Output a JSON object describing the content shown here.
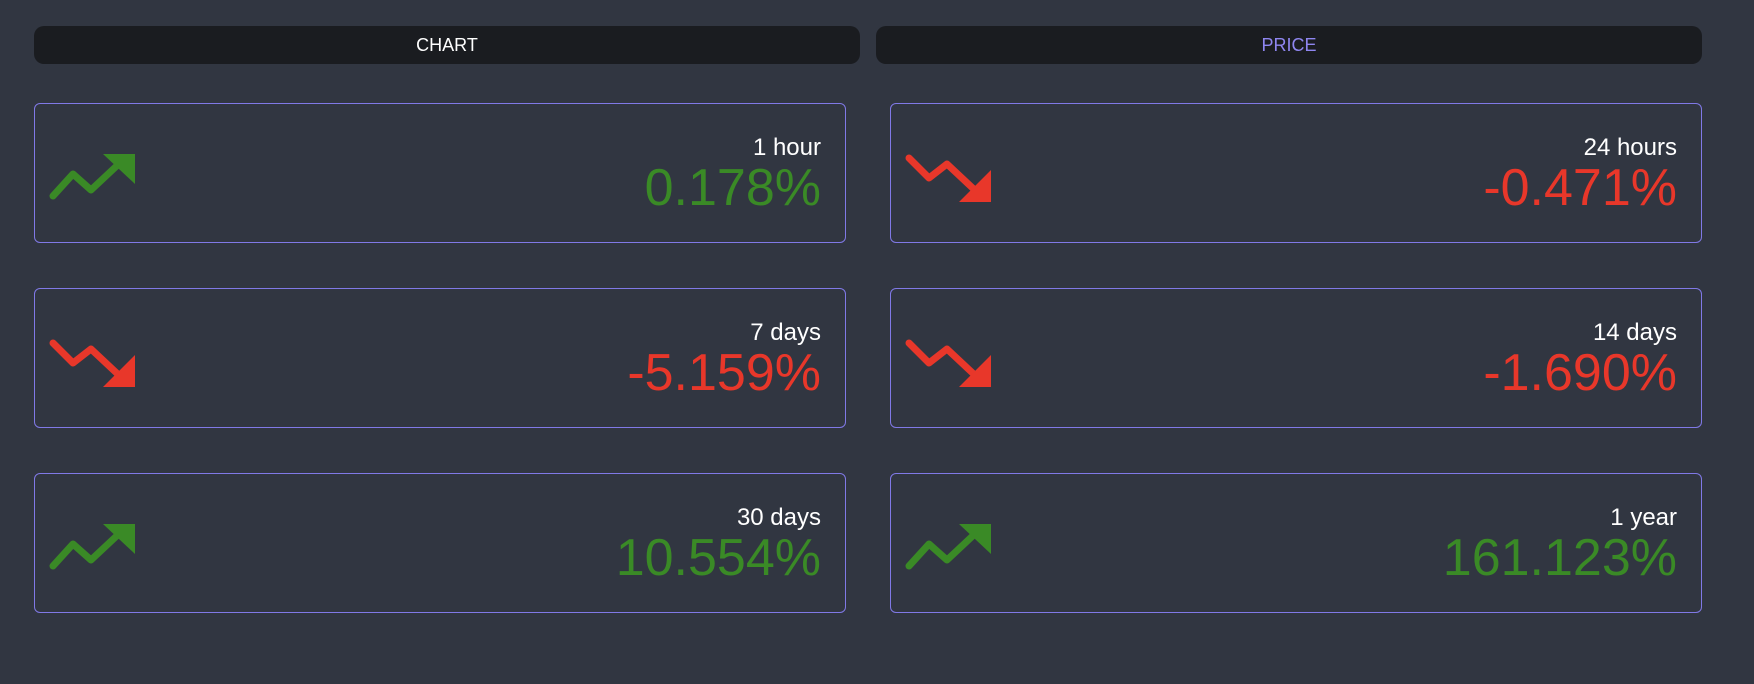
{
  "tabs": {
    "chart_label": "CHART",
    "price_label": "PRICE",
    "active": "price"
  },
  "colors": {
    "background": "#313641",
    "tab_background": "#1a1c20",
    "card_border": "#8079e6",
    "positive": "#3a8a26",
    "negative": "#e8372a",
    "active_tab_text": "#8f86f0"
  },
  "cards": [
    {
      "period": "1 hour",
      "change": "0.178%",
      "trend": "up",
      "icon": "trending-up-icon"
    },
    {
      "period": "24 hours",
      "change": "-0.471%",
      "trend": "down",
      "icon": "trending-down-icon"
    },
    {
      "period": "7 days",
      "change": "-5.159%",
      "trend": "down",
      "icon": "trending-down-icon"
    },
    {
      "period": "14 days",
      "change": "-1.690%",
      "trend": "down",
      "icon": "trending-down-icon"
    },
    {
      "period": "30 days",
      "change": "10.554%",
      "trend": "up",
      "icon": "trending-up-icon"
    },
    {
      "period": "1 year",
      "change": "161.123%",
      "trend": "up",
      "icon": "trending-up-icon"
    }
  ]
}
